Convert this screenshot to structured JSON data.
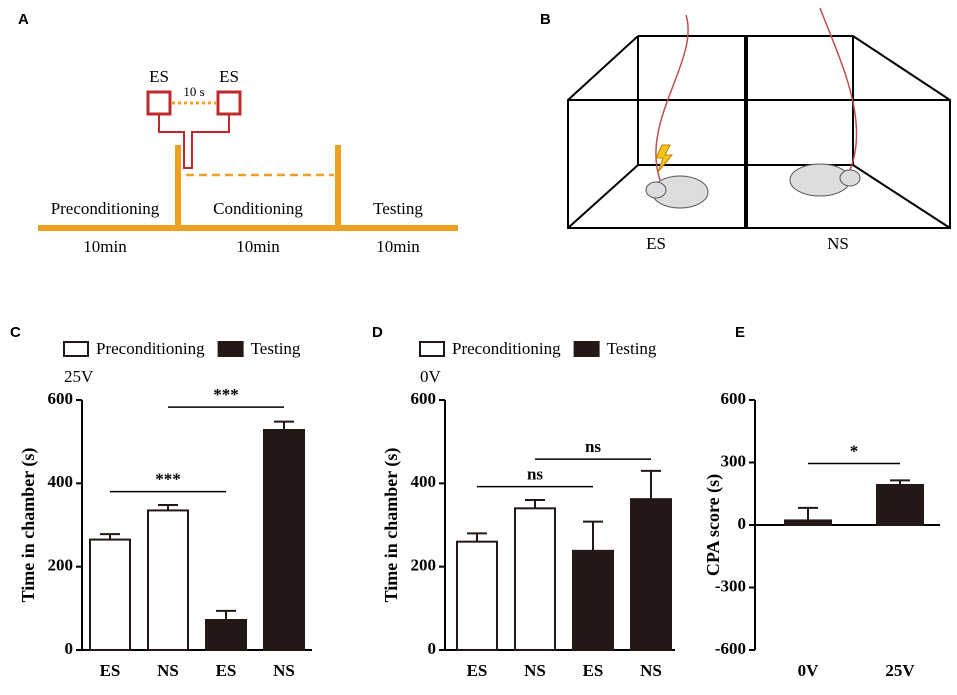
{
  "panel_labels": [
    "A",
    "B",
    "C",
    "D",
    "E"
  ],
  "timeline": {
    "phases": [
      "Preconditioning",
      "Conditioning",
      "Testing"
    ],
    "durations": [
      "10min",
      "10min",
      "10min"
    ],
    "stimuli": [
      "ES",
      "ES"
    ],
    "interval": "10 s"
  },
  "chamber": {
    "labels": [
      "ES",
      "NS"
    ]
  },
  "chart_data": [
    {
      "type": "bar",
      "subtitle": "25V",
      "ylabel": "Time in chamber (s)",
      "categories": [
        "ES",
        "NS",
        "ES",
        "NS"
      ],
      "series": [
        {
          "name": "Preconditioning",
          "color": "#ffffff",
          "values": [
            265,
            335,
            null,
            null
          ],
          "errors": [
            13,
            13,
            null,
            null
          ]
        },
        {
          "name": "Testing",
          "color": "#231815",
          "values": [
            null,
            null,
            72,
            528
          ],
          "errors": [
            null,
            null,
            22,
            20
          ]
        }
      ],
      "ylim": [
        0,
        600
      ],
      "yticks": [
        0,
        200,
        400,
        600
      ],
      "annotations": [
        {
          "text": "***",
          "from": 0,
          "to": 2,
          "level": 380
        },
        {
          "text": "***",
          "from": 1,
          "to": 3,
          "level": 583
        }
      ]
    },
    {
      "type": "bar",
      "subtitle": "0V",
      "ylabel": "Time in chamber (s)",
      "categories": [
        "ES",
        "NS",
        "ES",
        "NS"
      ],
      "series": [
        {
          "name": "Preconditioning",
          "color": "#ffffff",
          "values": [
            260,
            340,
            null,
            null
          ],
          "errors": [
            20,
            20,
            null,
            null
          ]
        },
        {
          "name": "Testing",
          "color": "#231815",
          "values": [
            null,
            null,
            238,
            362
          ],
          "errors": [
            null,
            null,
            70,
            68
          ]
        }
      ],
      "ylim": [
        0,
        600
      ],
      "yticks": [
        0,
        200,
        400,
        600
      ],
      "annotations": [
        {
          "text": "ns",
          "from": 0,
          "to": 2,
          "level": 392
        },
        {
          "text": "ns",
          "from": 1,
          "to": 3,
          "level": 458
        }
      ]
    },
    {
      "type": "bar",
      "ylabel": "CPA score (s)",
      "categories": [
        "0V",
        "25V"
      ],
      "values": [
        22,
        192
      ],
      "errors": [
        60,
        22
      ],
      "color": "#231815",
      "ylim": [
        -600,
        600
      ],
      "yticks": [
        -600,
        -300,
        0,
        300,
        600
      ],
      "annotations": [
        {
          "text": "*",
          "from": 0,
          "to": 1,
          "level": 295
        }
      ]
    }
  ]
}
